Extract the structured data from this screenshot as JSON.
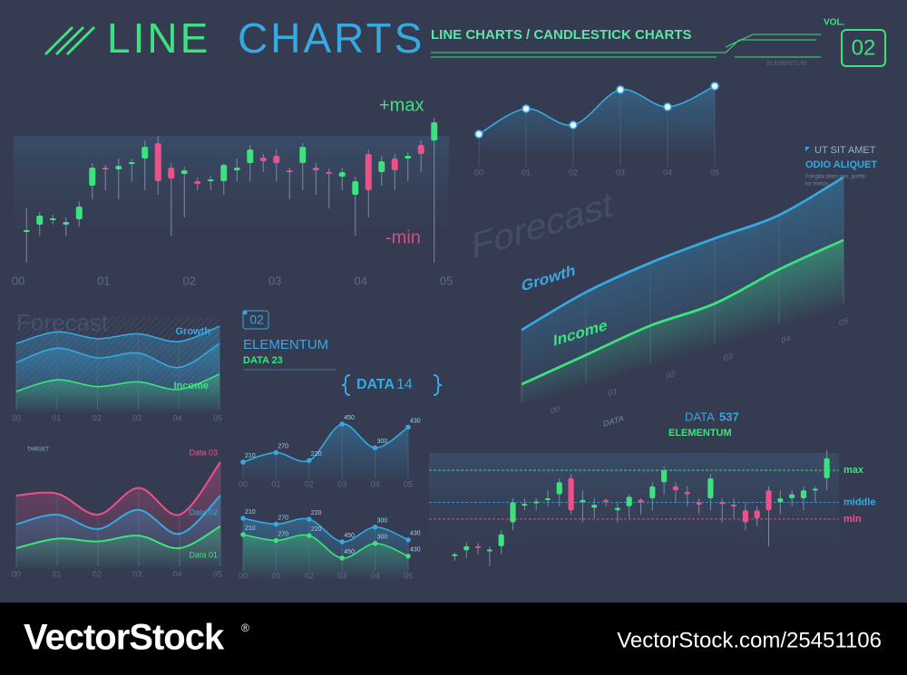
{
  "header": {
    "title_1": "LINE",
    "title_2": "CHARTS",
    "subtitle": "LINE CHARTS / CANDLESTICK CHARTS",
    "brand": "ELEMENTUM",
    "vol_label": "VOL.",
    "vol": "02"
  },
  "sidebar": {
    "line_1": "UT SIT AMET",
    "line_2": "ODIO ALIQUET",
    "line_3": "Fringilla diam non, porttit-",
    "line_4": "tor metus."
  },
  "panel": {
    "number": "02",
    "title": "ELEMENTUM",
    "subtitle": "DATA 23"
  },
  "footer": {
    "logo": "VectorStock",
    "mark": "®",
    "url": "VectorStock.com/25451106"
  },
  "chart_data": [
    {
      "type": "candlestick",
      "x_labels": [
        "00",
        "01",
        "02",
        "03",
        "04",
        "05"
      ],
      "annotations": [
        "+max",
        "-min"
      ],
      "up_color": "#3de27f",
      "down_color": "#f0508a",
      "open": [
        44,
        52,
        58,
        52,
        58,
        95,
        115,
        113,
        120,
        125,
        142,
        115,
        108,
        100,
        100,
        100,
        112,
        120,
        126,
        128,
        112,
        120,
        115,
        110,
        105,
        85,
        130,
        110,
        125,
        125,
        140,
        145
      ],
      "close": [
        46,
        62,
        59,
        55,
        72,
        115,
        114,
        117,
        121,
        138,
        100,
        103,
        112,
        97,
        102,
        118,
        115,
        135,
        122,
        120,
        110,
        138,
        112,
        108,
        110,
        100,
        90,
        122,
        112,
        128,
        130,
        165
      ],
      "high": [
        70,
        66,
        63,
        60,
        78,
        120,
        118,
        125,
        125,
        145,
        150,
        120,
        116,
        104,
        106,
        120,
        125,
        140,
        130,
        135,
        115,
        142,
        120,
        114,
        115,
        105,
        135,
        128,
        130,
        132,
        145,
        170
      ],
      "low": [
        10,
        40,
        52,
        40,
        50,
        80,
        90,
        80,
        100,
        90,
        85,
        40,
        60,
        90,
        90,
        85,
        100,
        100,
        110,
        100,
        80,
        90,
        85,
        70,
        90,
        40,
        60,
        95,
        90,
        100,
        110,
        10
      ]
    },
    {
      "type": "line",
      "x_labels": [
        "00",
        "01",
        "02",
        "03",
        "04",
        "05"
      ],
      "series": [
        {
          "color": "#36a9e0",
          "values": [
            52,
            80,
            62,
            101,
            82,
            105
          ]
        }
      ]
    },
    {
      "type": "line",
      "title": "Forecast",
      "note": "DATA",
      "x_labels": [
        "00",
        "01",
        "02",
        "03",
        "04",
        "05"
      ],
      "series": [
        {
          "name": "Growth",
          "color": "#36a9e0",
          "values": [
            55,
            70,
            78,
            82,
            85,
            100
          ]
        },
        {
          "name": "Income",
          "color": "#3de27f",
          "values": [
            10,
            18,
            26,
            28,
            40,
            48
          ]
        }
      ]
    },
    {
      "type": "line",
      "title": "Forecast",
      "x_labels": [
        "00",
        "01",
        "02",
        "03",
        "04",
        "05"
      ],
      "series": [
        {
          "name": "Growth",
          "color": "#36a9e0",
          "values": [
            60,
            72,
            65,
            70,
            62,
            78
          ]
        },
        {
          "color": "#36a9e0",
          "values": [
            40,
            55,
            45,
            50,
            35,
            60
          ]
        },
        {
          "name": "Income",
          "color": "#3de27f",
          "values": [
            10,
            22,
            15,
            20,
            12,
            28
          ]
        }
      ]
    },
    {
      "type": "line",
      "title": "DATA",
      "title_number": "14",
      "x_labels": [
        "00",
        "01",
        "02",
        "03",
        "04",
        "05"
      ],
      "series": [
        {
          "color": "#36a9e0",
          "values": [
            210,
            270,
            220,
            450,
            300,
            430
          ]
        }
      ]
    },
    {
      "type": "line",
      "x_labels": [
        "00",
        "01",
        "02",
        "03",
        "04",
        "05"
      ],
      "series": [
        {
          "color": "#36a9e0",
          "values": [
            210,
            270,
            220,
            450,
            300,
            430
          ]
        },
        {
          "color": "#3de27f",
          "values": [
            210,
            270,
            220,
            450,
            300,
            430
          ]
        }
      ]
    },
    {
      "type": "line",
      "annotation": "TARGET",
      "x_labels": [
        "00",
        "01",
        "02",
        "03",
        "04",
        "05"
      ],
      "series": [
        {
          "name": "Data 03",
          "color": "#f0508a",
          "values": [
            60,
            62,
            40,
            68,
            40,
            95
          ]
        },
        {
          "name": "Data 02",
          "color": "#36a9e0",
          "values": [
            30,
            40,
            25,
            45,
            20,
            60
          ]
        },
        {
          "name": "Data 01",
          "color": "#3de27f",
          "values": [
            5,
            15,
            12,
            18,
            5,
            28
          ]
        }
      ]
    },
    {
      "type": "candlestick",
      "title": "DATA",
      "title_number": "537",
      "subtitle": "ELEMENTUM",
      "up_color": "#3de27f",
      "down_color": "#f0508a",
      "ref_lines": [
        {
          "label": "max",
          "value": 135,
          "color": "#3de27f"
        },
        {
          "label": "middle",
          "value": 95,
          "color": "#36a9e0"
        },
        {
          "label": "min",
          "value": 74,
          "color": "#f0508a"
        }
      ],
      "open": [
        28,
        35,
        40,
        35,
        40,
        70,
        92,
        95,
        98,
        105,
        125,
        95,
        88,
        98,
        85,
        90,
        98,
        100,
        120,
        115,
        108,
        95,
        100,
        95,
        92,
        85,
        85,
        110,
        95,
        100,
        100,
        110,
        125
      ],
      "close": [
        30,
        40,
        38,
        36,
        55,
        95,
        93,
        96,
        100,
        120,
        85,
        98,
        92,
        96,
        88,
        102,
        95,
        115,
        135,
        110,
        105,
        92,
        125,
        93,
        90,
        70,
        75,
        85,
        100,
        105,
        110,
        112,
        150
      ],
      "high": [
        32,
        45,
        44,
        40,
        60,
        100,
        100,
        100,
        110,
        125,
        130,
        110,
        100,
        100,
        95,
        105,
        100,
        120,
        140,
        120,
        115,
        100,
        130,
        100,
        100,
        95,
        90,
        115,
        110,
        110,
        115,
        115,
        160
      ],
      "low": [
        22,
        25,
        30,
        15,
        30,
        60,
        85,
        85,
        90,
        90,
        80,
        70,
        75,
        90,
        70,
        75,
        80,
        85,
        105,
        95,
        90,
        80,
        85,
        70,
        75,
        60,
        65,
        40,
        80,
        90,
        85,
        95,
        110
      ]
    }
  ]
}
